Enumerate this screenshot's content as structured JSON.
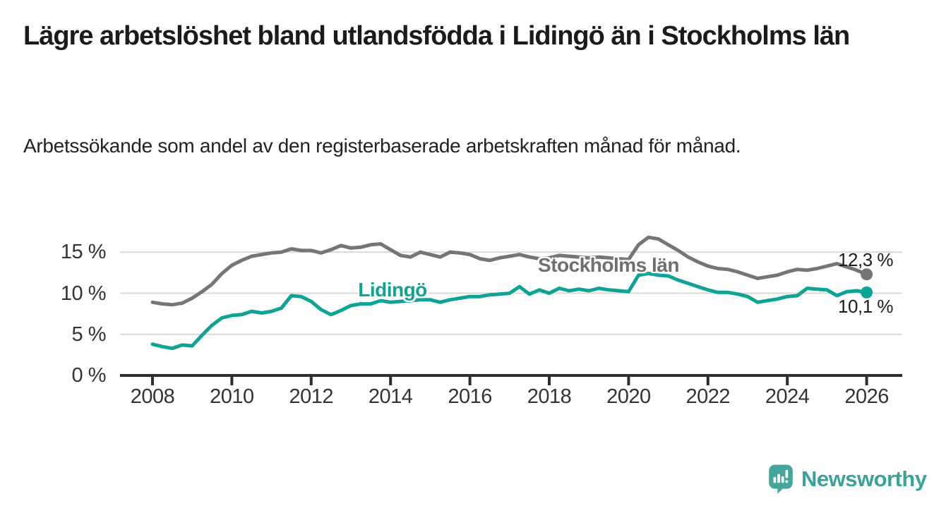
{
  "header": {
    "title": "Lägre arbetslöshet bland utlandsfödda i Lidingö än i Stockholms län",
    "subtitle": "Arbetssökande som andel av den registerbaserade arbetskraften månad för månad."
  },
  "chart_data": {
    "type": "line",
    "unit": "%",
    "x_start": 2008,
    "x_step_years": 0.25,
    "x_ticks": [
      2008,
      2010,
      2012,
      2014,
      2016,
      2018,
      2020,
      2022,
      2024,
      2026
    ],
    "y_ticks": {
      "values": [
        0,
        5,
        10,
        15
      ],
      "labels": [
        "0 %",
        "5 %",
        "10 %",
        "15 %"
      ]
    },
    "ylim": [
      0,
      17.5
    ],
    "xlim": [
      2007.2,
      2026.9
    ],
    "grid": "horizontal",
    "legend_position": "inline-labels",
    "series": [
      {
        "name": "Stockholms län",
        "color": "#757575",
        "end_label": "12,3 %",
        "values": [
          8.9,
          8.7,
          8.6,
          8.8,
          9.4,
          10.2,
          11.1,
          12.4,
          13.4,
          14.0,
          14.5,
          14.7,
          14.9,
          15.0,
          15.4,
          15.2,
          15.2,
          14.9,
          15.3,
          15.8,
          15.5,
          15.6,
          15.9,
          16.0,
          15.3,
          14.6,
          14.4,
          15.0,
          14.7,
          14.4,
          15.0,
          14.9,
          14.7,
          14.2,
          14.0,
          14.3,
          14.5,
          14.7,
          14.4,
          14.2,
          14.3,
          14.6,
          14.5,
          14.4,
          14.3,
          14.4,
          14.3,
          14.2,
          14.1,
          15.9,
          16.8,
          16.6,
          15.9,
          15.2,
          14.4,
          13.8,
          13.3,
          13.0,
          12.9,
          12.6,
          12.2,
          11.8,
          12.0,
          12.2,
          12.6,
          12.9,
          12.8,
          13.0,
          13.3,
          13.6,
          13.2,
          12.8,
          12.3
        ]
      },
      {
        "name": "Lidingö",
        "color": "#0fa396",
        "end_label": "10,1 %",
        "values": [
          3.8,
          3.5,
          3.3,
          3.7,
          3.6,
          4.9,
          6.1,
          7.0,
          7.3,
          7.4,
          7.8,
          7.6,
          7.8,
          8.2,
          9.7,
          9.6,
          9.0,
          8.0,
          7.4,
          7.9,
          8.5,
          8.7,
          8.7,
          9.1,
          8.9,
          9.0,
          9.1,
          9.2,
          9.2,
          8.9,
          9.2,
          9.4,
          9.6,
          9.6,
          9.8,
          9.9,
          10.0,
          10.8,
          9.9,
          10.4,
          10.0,
          10.6,
          10.3,
          10.5,
          10.3,
          10.6,
          10.4,
          10.3,
          10.2,
          12.2,
          12.4,
          12.2,
          12.1,
          11.6,
          11.2,
          10.8,
          10.4,
          10.1,
          10.1,
          9.9,
          9.6,
          8.9,
          9.1,
          9.3,
          9.6,
          9.7,
          10.6,
          10.5,
          10.4,
          9.7,
          10.2,
          10.3,
          10.1
        ]
      }
    ]
  },
  "footer": {
    "brand": "Newsworthy"
  }
}
